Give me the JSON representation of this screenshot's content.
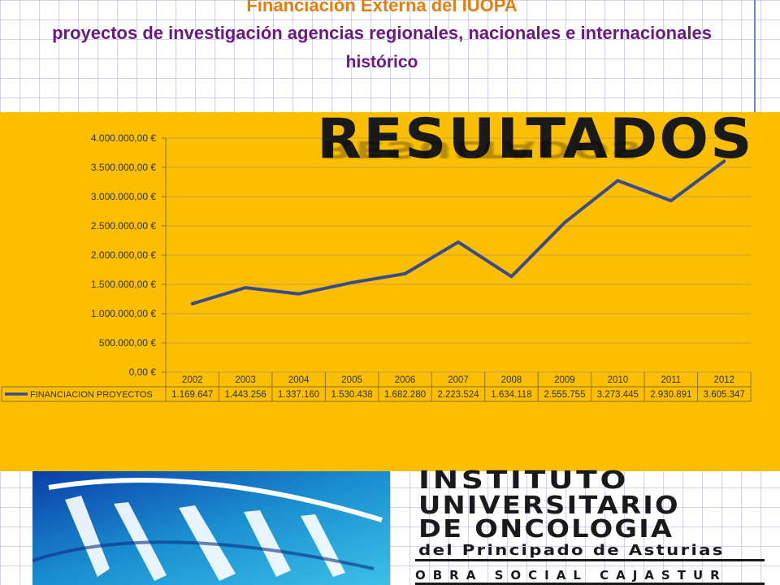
{
  "header": {
    "title": "Financiación Externa del IUOPA",
    "subtitle": "proyectos de investigación agencias regionales, nacionales  e internacionales",
    "subtitle2": "histórico"
  },
  "banner": {
    "word": "RESULTADOS"
  },
  "logo": {
    "line1": "INSTITUTO",
    "line2": "UNIVERSITARIO",
    "line3": "DE  ONCOLOGIA",
    "line4": "del Principado de Asturias",
    "line5": "OBRA  SOCIAL  CAJASTUR"
  },
  "colors": {
    "panel": "#fbbf00",
    "line": "#3a4b8c",
    "title": "#e57e10",
    "subtitle": "#6a1a80"
  },
  "chart_data": {
    "type": "line",
    "categories": [
      "2002",
      "2003",
      "2004",
      "2005",
      "2006",
      "2007",
      "2008",
      "2009",
      "2010",
      "2011",
      "2012"
    ],
    "series": [
      {
        "name": "FINANCIACION PROYECTOS",
        "values": [
          1169647,
          1443256,
          1337160,
          1530438,
          1682280,
          2223524,
          1634118,
          2555755,
          3273445,
          2930891,
          3605347
        ],
        "labels": [
          "1.169.647",
          "1.443.256",
          "1.337.160",
          "1.530.438",
          "1.682.280",
          "2.223.524",
          "1.634.118",
          "2.555.755",
          "3.273.445",
          "2.930.891",
          "3.605.347"
        ]
      }
    ],
    "ylim": [
      0,
      4000000
    ],
    "yticks": [
      "0,00 €",
      "500.000,00 €",
      "1.000.000,00 €",
      "1.500.000,00 €",
      "2.000.000,00 €",
      "2.500.000,00 €",
      "3.000.000,00 €",
      "3.500.000,00 €",
      "4.000.000,00 €"
    ],
    "grid": true,
    "legend": "data-table"
  }
}
